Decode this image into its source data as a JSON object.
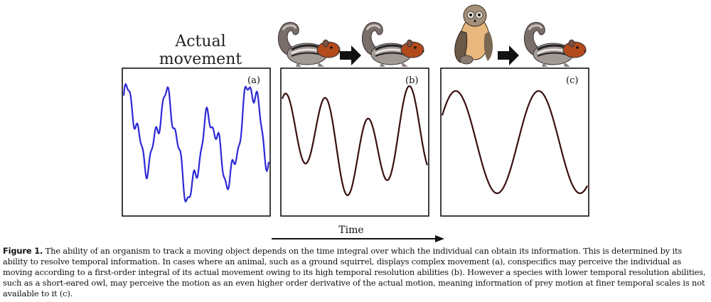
{
  "figure": {
    "title_line1": "Actual",
    "title_line2": "movement",
    "panels": [
      {
        "label": "(a)",
        "observer": "",
        "color": "#2d2ad6"
      },
      {
        "label": "(b)",
        "observer": "squirrel",
        "color": "#3a1010"
      },
      {
        "label": "(c)",
        "observer": "owl",
        "color": "#3a1010"
      }
    ],
    "time_label": "Time",
    "icons": [
      "squirrel-icon",
      "arrow-icon",
      "owl-icon"
    ]
  },
  "caption": {
    "label": "Figure 1.",
    "text": " The ability of an organism to track a moving object depends on the time integral over which the individual can obtain its information. This is determined by its ability to resolve temporal information. In cases where an animal, such as a ground squirrel, displays complex movement (a), conspecifics may perceive the individual as moving according to a first-order integral of its actual movement owing to its high temporal resolution abilities (b). However a species with lower temporal resolution abilities, such as a short-eared owl, may perceive the motion as an even higher order derivative of the actual motion, meaning information of prey motion at finer temporal scales is not available to it (c)."
  }
}
